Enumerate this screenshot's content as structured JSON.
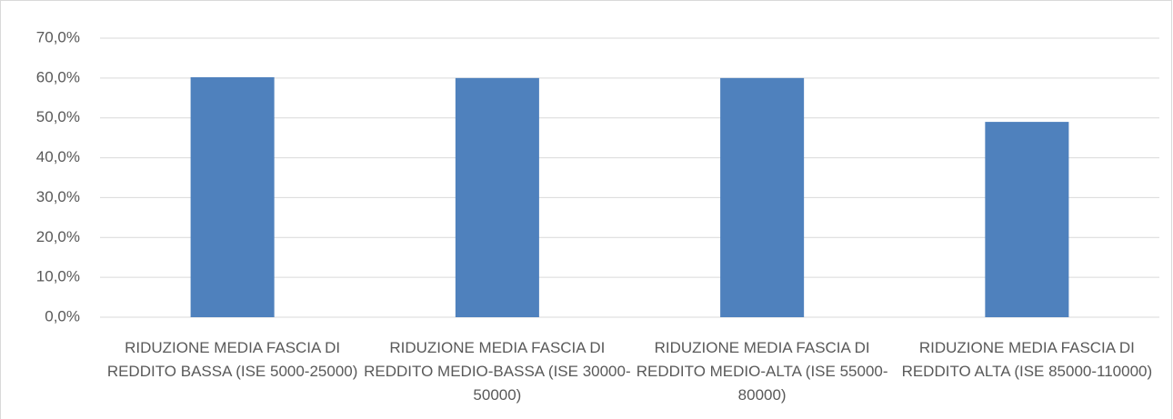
{
  "chart_data": {
    "type": "bar",
    "categories": [
      "RIDUZIONE MEDIA FASCIA DI REDDITO BASSA (ISE 5000-25000)",
      "RIDUZIONE MEDIA FASCIA DI REDDITO MEDIO-BASSA (ISE 30000-50000)",
      "RIDUZIONE MEDIA FASCIA DI REDDITO MEDIO-ALTA (ISE 55000-80000)",
      "RIDUZIONE MEDIA FASCIA DI REDDITO ALTA (ISE 85000-110000)"
    ],
    "values": [
      60.2,
      60.0,
      60.0,
      49.0
    ],
    "color": "#4f81bd",
    "ylim": [
      0,
      70
    ],
    "yticks": [
      {
        "value": 0,
        "label": "0,0%"
      },
      {
        "value": 10,
        "label": "10,0%"
      },
      {
        "value": 20,
        "label": "20,0%"
      },
      {
        "value": 30,
        "label": "30,0%"
      },
      {
        "value": 40,
        "label": "40,0%"
      },
      {
        "value": 50,
        "label": "50,0%"
      },
      {
        "value": 60,
        "label": "60,0%"
      },
      {
        "value": 70,
        "label": "70,0%"
      }
    ],
    "grid": true
  }
}
